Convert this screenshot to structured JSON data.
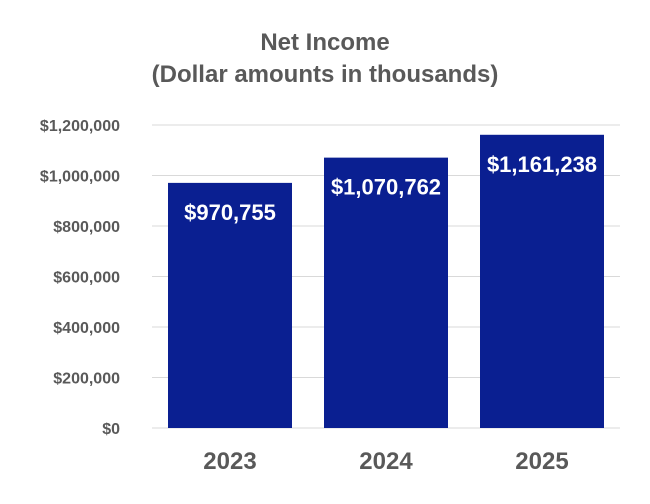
{
  "chart_data": {
    "type": "bar",
    "title": "Net Income",
    "subtitle": "(Dollar amounts in thousands)",
    "categories": [
      "2023",
      "2024",
      "2025"
    ],
    "values": [
      970755,
      1070762,
      1161238
    ],
    "data_labels": [
      "$970,755",
      "$1,070,762",
      "$1,161,238"
    ],
    "ylim": [
      0,
      1200000
    ],
    "yticks": [
      0,
      200000,
      400000,
      600000,
      800000,
      1000000,
      1200000
    ],
    "ytick_labels": [
      "$0",
      "$200,000",
      "$400,000",
      "$600,000",
      "$800,000",
      "$1,000,000",
      "$1,200,000"
    ],
    "xlabel": "",
    "ylabel": "",
    "grid": true,
    "bar_color": "#0A1F91",
    "label_color": "#FFFFFF",
    "text_color": "#595959",
    "grid_color": "#D9D9D9"
  }
}
